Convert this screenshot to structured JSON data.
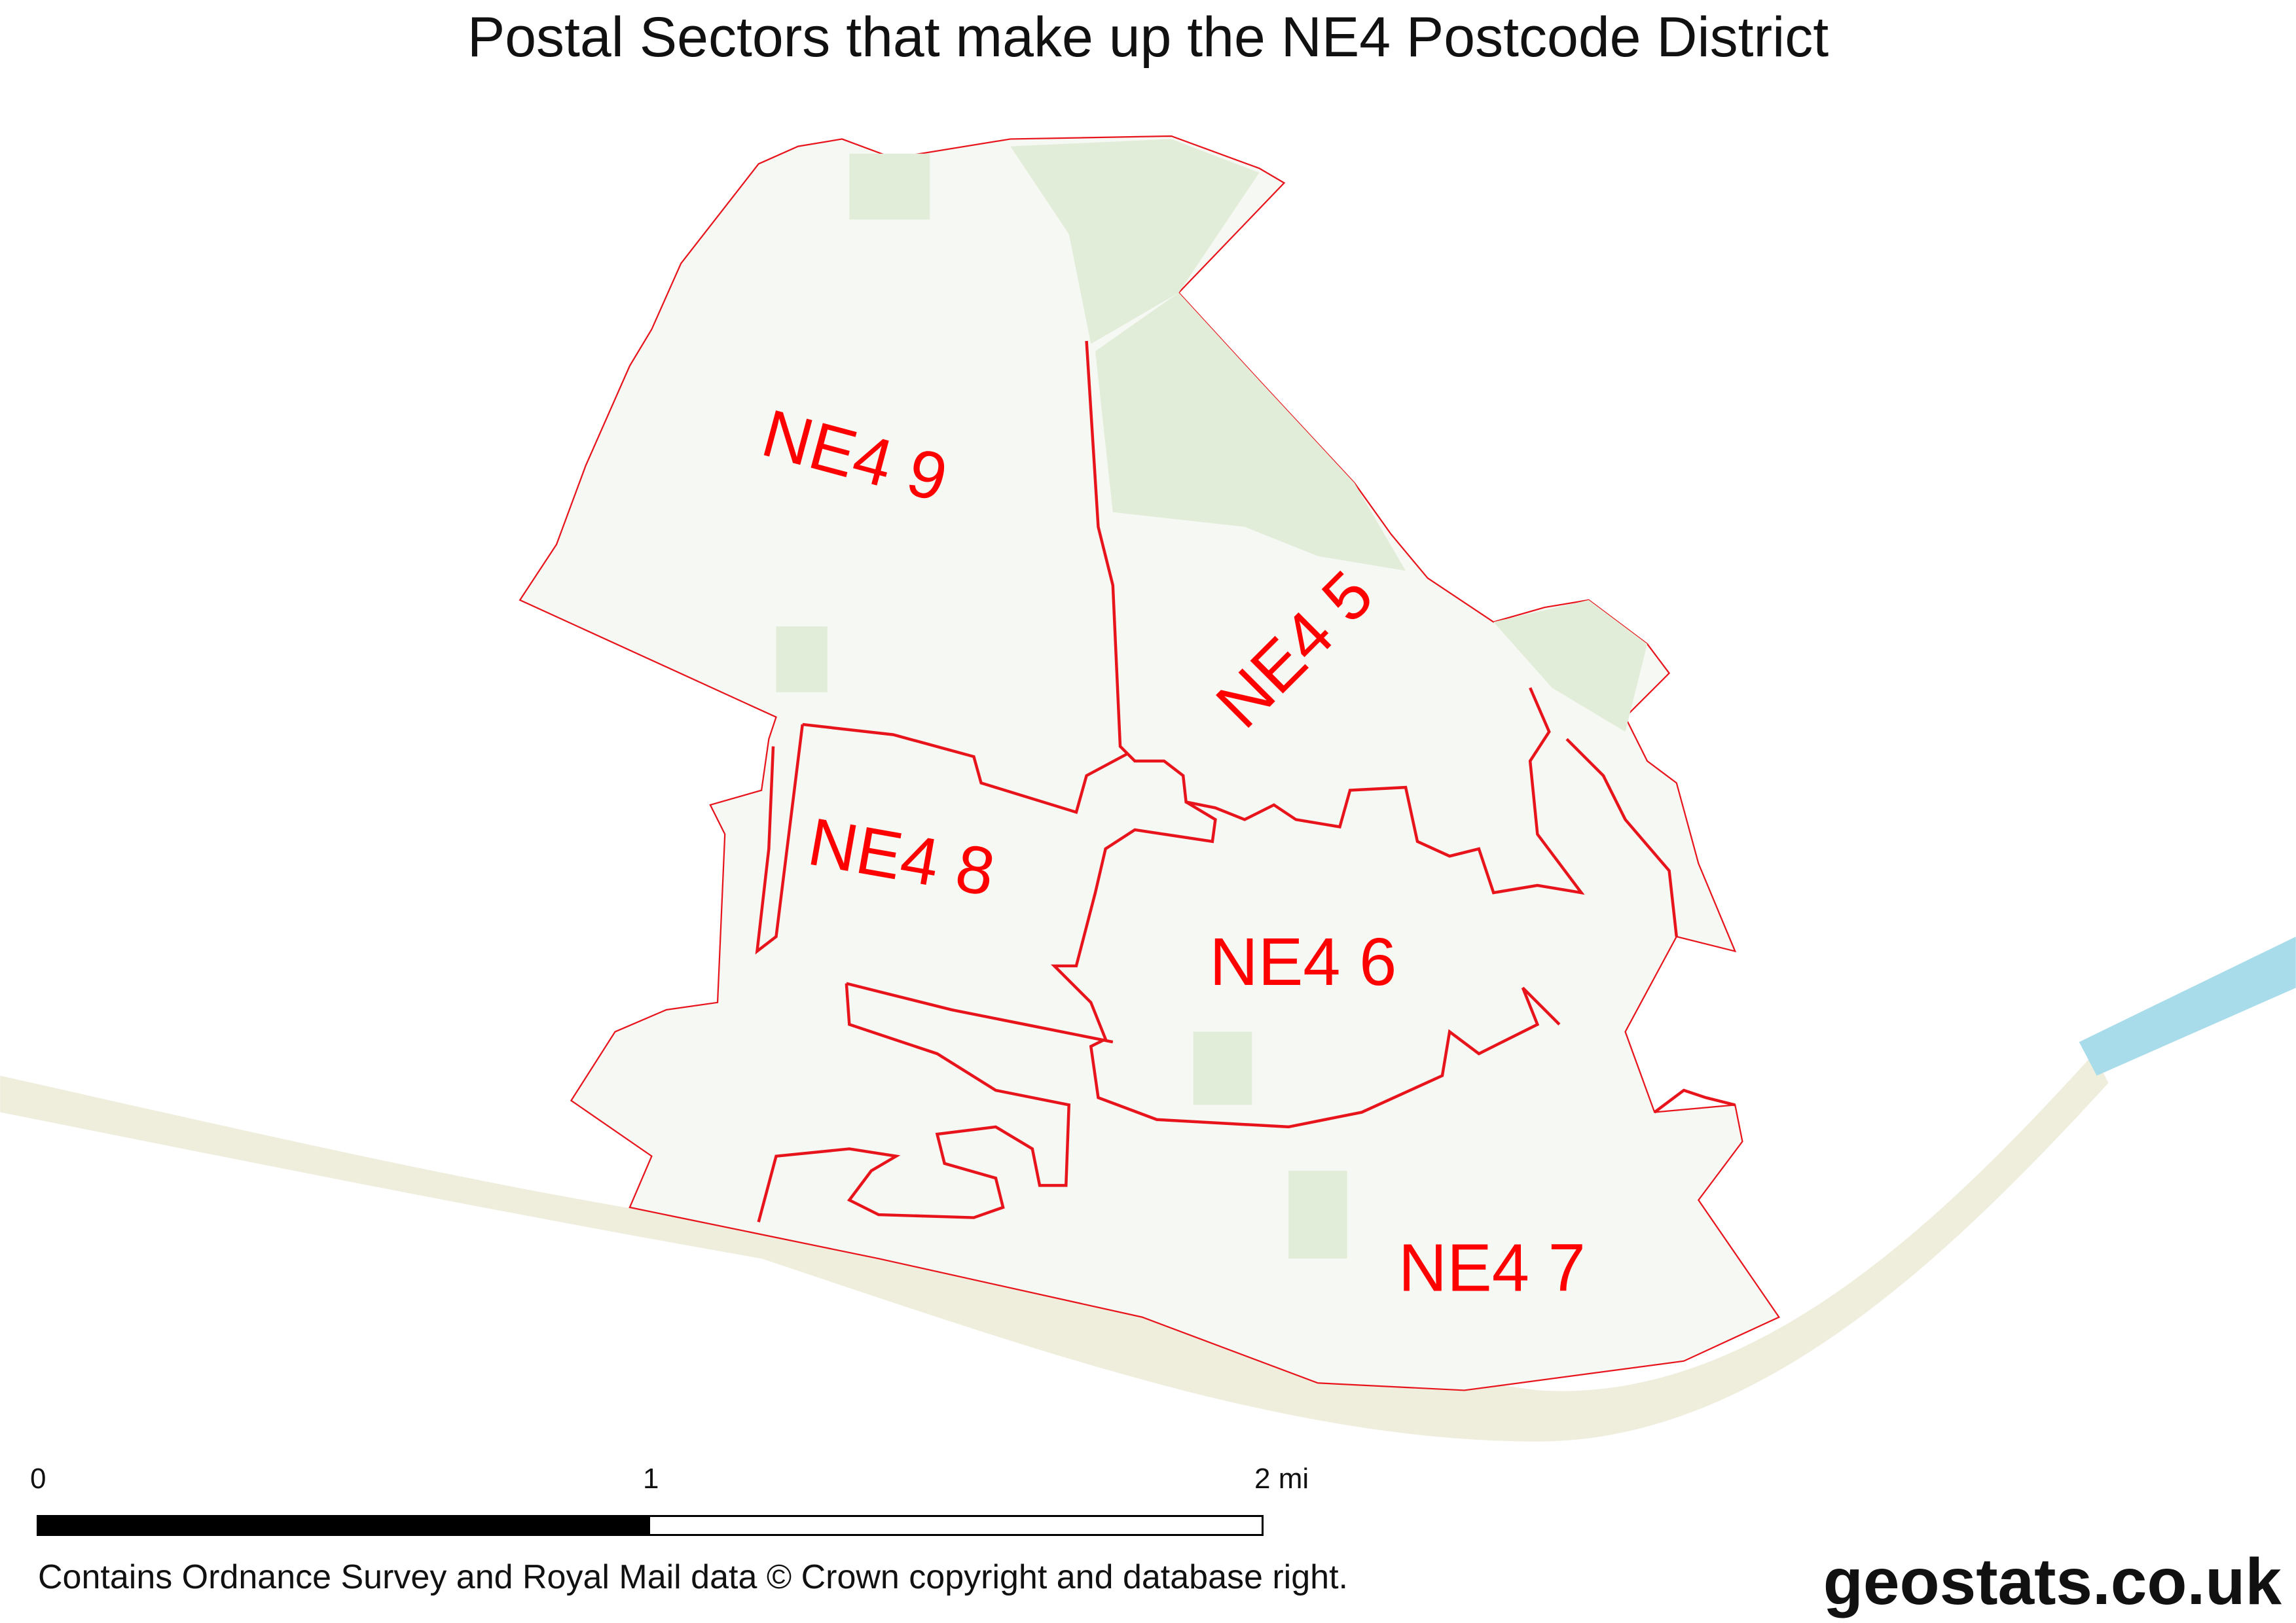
{
  "title": "Postal Sectors that make up the NE4 Postcode District",
  "sectors": [
    {
      "label": "NE4 9"
    },
    {
      "label": "NE4 5"
    },
    {
      "label": "NE4 8"
    },
    {
      "label": "NE4 6"
    },
    {
      "label": "NE4 7"
    }
  ],
  "scale": {
    "ticks": [
      "0",
      "1",
      "2 mi"
    ],
    "filled_fraction": 0.5
  },
  "attribution": "Contains Ordnance Survey and Royal Mail data © Crown copyright and database right.",
  "brand": "geostats.co.uk",
  "colors": {
    "boundary": "#e8141c",
    "label": "#ff0000",
    "land": "#f6f8f3",
    "green": "#e4eedc",
    "river": "#a8dcea",
    "riverbank": "#ebead6"
  }
}
